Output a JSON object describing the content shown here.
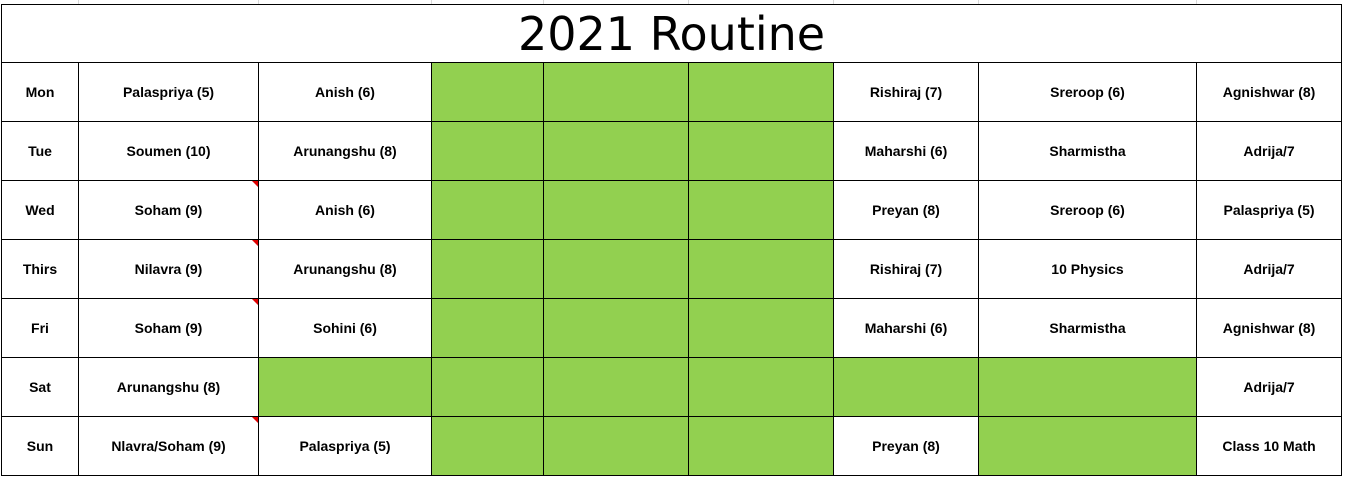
{
  "title": "2021 Routine",
  "colors": {
    "free_slot": "#92d050",
    "grid_border": "#000000",
    "comment_marker": "#e00000"
  },
  "rows": [
    {
      "day": "Mon",
      "cells": [
        "Palaspriya (5)",
        "Anish  (6)",
        "",
        "",
        "",
        "Rishiraj (7)",
        "Sreroop (6)",
        "Agnishwar (8)"
      ]
    },
    {
      "day": "Tue",
      "cells": [
        "Soumen (10)",
        "Arunangshu (8)",
        "",
        "",
        "",
        "Maharshi (6)",
        "Sharmistha",
        "Adrija/7"
      ]
    },
    {
      "day": "Wed",
      "cells": [
        "Soham (9)",
        "Anish  (6)",
        "",
        "",
        "",
        "Preyan (8)",
        "Sreroop (6)",
        "Palaspriya (5)"
      ]
    },
    {
      "day": "Thirs",
      "cells": [
        "Nilavra (9)",
        "Arunangshu (8)",
        "",
        "",
        "",
        "Rishiraj (7)",
        "10 Physics",
        "Adrija/7"
      ]
    },
    {
      "day": "Fri",
      "cells": [
        "Soham (9)",
        "Sohini (6)",
        "",
        "",
        "",
        "Maharshi (6)",
        "Sharmistha",
        "Agnishwar (8)"
      ]
    },
    {
      "day": "Sat",
      "cells": [
        "Arunangshu (8)",
        "",
        "",
        "",
        "",
        "",
        "",
        "Adrija/7"
      ]
    },
    {
      "day": "Sun",
      "cells": [
        "Nlavra/Soham (9)",
        "Palaspriya (5)",
        "",
        "",
        "",
        "Preyan (8)",
        "",
        "Class 10 Math"
      ]
    }
  ]
}
